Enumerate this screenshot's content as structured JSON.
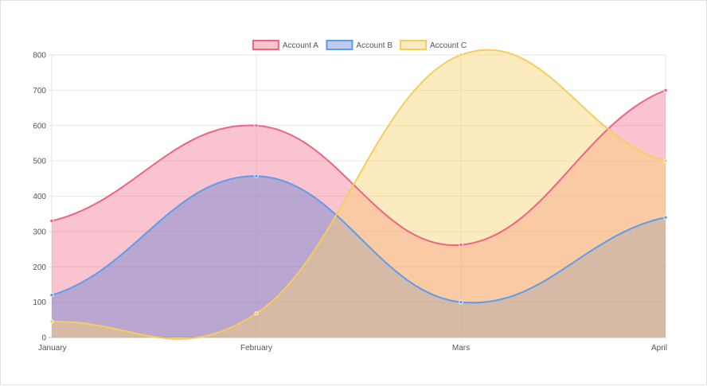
{
  "chart_data": {
    "type": "area",
    "categories": [
      "January",
      "February",
      "Mars",
      "April"
    ],
    "ylim": [
      0,
      800
    ],
    "yticks": [
      0,
      100,
      200,
      300,
      400,
      500,
      600,
      700,
      800
    ],
    "grid": true,
    "legend_position": "top-center",
    "series": [
      {
        "name": "Account A",
        "values": [
          330,
          600,
          262,
          700
        ],
        "color": "#f06384",
        "fill": "rgba(240,99,132,0.38)"
      },
      {
        "name": "Account B",
        "values": [
          120,
          457,
          100,
          340
        ],
        "color": "#5d9cec",
        "fill": "rgba(93,126,210,0.40)"
      },
      {
        "name": "Account C",
        "values": [
          45,
          68,
          800,
          500
        ],
        "color": "#f5cd5a",
        "fill": "rgba(248,210,110,0.45)"
      }
    ]
  }
}
